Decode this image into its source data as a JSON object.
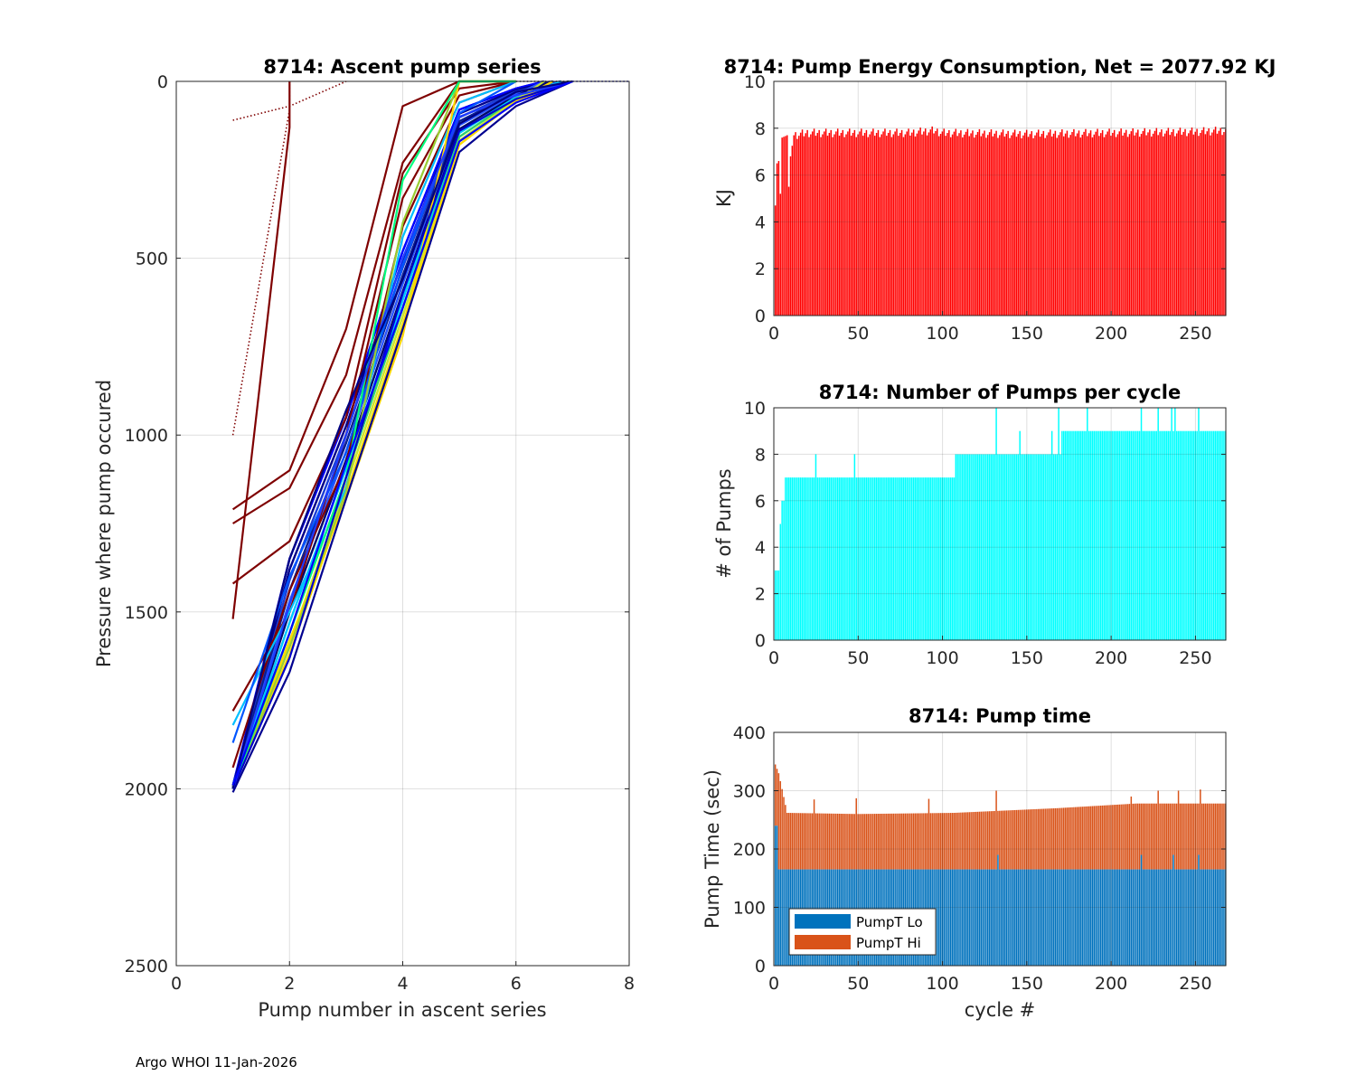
{
  "footer": "Argo WHOI 11-Jan-2026",
  "chart_data": [
    {
      "id": "ascent",
      "type": "line",
      "title": "8714: Ascent pump series",
      "xlabel": "Pump number in ascent series",
      "ylabel": "Pressure where pump occured",
      "xlim": [
        0,
        8
      ],
      "ylim": [
        2500,
        0
      ],
      "y_reversed": true,
      "grid": true,
      "xticks": [
        "0",
        "2",
        "4",
        "6",
        "8"
      ],
      "yticks": [
        "0",
        "500",
        "1000",
        "1500",
        "2000",
        "2500"
      ],
      "series": [
        {
          "color": "#7f0000",
          "style": "dotted",
          "x": [
            1,
            2,
            2
          ],
          "y": [
            1000,
            80,
            0
          ]
        },
        {
          "color": "#7f0000",
          "style": "dotted",
          "x": [
            1,
            2,
            3
          ],
          "y": [
            110,
            70,
            0
          ]
        },
        {
          "color": "#7f0000",
          "style": "solid",
          "x": [
            1,
            2,
            2
          ],
          "y": [
            1520,
            130,
            0
          ]
        },
        {
          "color": "#7f0000",
          "style": "solid",
          "x": [
            1,
            2,
            3,
            4,
            5,
            6
          ],
          "y": [
            1210,
            1100,
            700,
            70,
            0,
            0
          ]
        },
        {
          "color": "#7f0000",
          "style": "solid",
          "x": [
            1,
            2,
            3,
            4,
            5,
            6
          ],
          "y": [
            1250,
            1150,
            830,
            230,
            0,
            0
          ]
        },
        {
          "color": "#7f0000",
          "style": "solid",
          "x": [
            1,
            2,
            3,
            4,
            5,
            6
          ],
          "y": [
            1420,
            1300,
            950,
            260,
            20,
            0
          ]
        },
        {
          "color": "#7f0000",
          "style": "solid",
          "x": [
            1,
            2,
            3,
            4,
            5,
            6
          ],
          "y": [
            1780,
            1500,
            1000,
            330,
            40,
            0
          ]
        },
        {
          "color": "#7f0000",
          "style": "solid",
          "x": [
            1,
            2,
            3,
            4,
            5,
            6
          ],
          "y": [
            1940,
            1440,
            1080,
            410,
            60,
            0
          ]
        },
        {
          "color": "#00bfff",
          "style": "solid",
          "x": [
            1,
            2,
            3,
            4,
            5,
            6
          ],
          "y": [
            1820,
            1500,
            1150,
            440,
            60,
            0
          ]
        },
        {
          "color": "#0055ff",
          "style": "solid",
          "x": [
            1,
            2,
            3,
            4,
            5,
            6
          ],
          "y": [
            1870,
            1400,
            1050,
            520,
            90,
            0
          ]
        },
        {
          "color": "#ffd700",
          "style": "solid",
          "x": [
            1,
            2,
            3,
            4,
            5,
            6
          ],
          "y": [
            2000,
            1580,
            1180,
            720,
            0,
            0
          ]
        },
        {
          "color": "#9acd32",
          "style": "solid",
          "x": [
            1,
            2,
            3,
            4,
            5,
            6
          ],
          "y": [
            2000,
            1600,
            1160,
            400,
            0,
            0
          ]
        },
        {
          "color": "#00ff7f",
          "style": "solid",
          "x": [
            1,
            2,
            3,
            4,
            5,
            6
          ],
          "y": [
            2000,
            1560,
            1120,
            280,
            0,
            0
          ]
        },
        {
          "color": "#00008f",
          "style": "solid",
          "x": [
            1,
            2,
            3,
            4,
            5,
            6,
            7
          ],
          "y": [
            2010,
            1670,
            1180,
            700,
            200,
            70,
            0
          ]
        },
        {
          "color": "#0000cd",
          "style": "solid",
          "x": [
            1,
            2,
            3,
            4,
            5,
            6,
            7
          ],
          "y": [
            2000,
            1630,
            1120,
            600,
            140,
            50,
            0
          ]
        },
        {
          "color": "#1e3cff",
          "style": "solid",
          "x": [
            1,
            2,
            3,
            4,
            5,
            6,
            7
          ],
          "y": [
            2000,
            1480,
            1000,
            500,
            100,
            40,
            0
          ]
        },
        {
          "color": "#000080",
          "style": "solid",
          "x": [
            1,
            2,
            3,
            4,
            5,
            6,
            7
          ],
          "y": [
            2000,
            1350,
            930,
            560,
            120,
            30,
            0
          ]
        },
        {
          "color": "#0000ff",
          "style": "solid",
          "x": [
            1,
            2,
            3,
            4,
            5,
            6,
            7
          ],
          "y": [
            1990,
            1560,
            1080,
            640,
            170,
            60,
            0
          ]
        },
        {
          "color": "#00003f",
          "style": "dotted",
          "x": [
            6,
            7
          ],
          "y": [
            0,
            0
          ]
        },
        {
          "color": "#0000aa",
          "style": "dotted",
          "x": [
            7,
            8
          ],
          "y": [
            0,
            0
          ]
        }
      ]
    },
    {
      "id": "energy",
      "type": "bar",
      "title": "8714: Pump Energy Consumption,  Net = 2077.92 KJ",
      "xlabel": "",
      "ylabel": "KJ",
      "xlim": [
        0,
        268
      ],
      "ylim": [
        0,
        10
      ],
      "grid": true,
      "xticks": [
        "0",
        "50",
        "100",
        "150",
        "200",
        "250"
      ],
      "yticks": [
        "0",
        "2",
        "4",
        "6",
        "8",
        "10"
      ],
      "color": "#ff0000",
      "n_cycles": 268,
      "anchors": [
        [
          1,
          4.7
        ],
        [
          2,
          6.5
        ],
        [
          3,
          6.6
        ],
        [
          4,
          5.2
        ],
        [
          5,
          7.6
        ],
        [
          8,
          7.7
        ],
        [
          9,
          5.5
        ],
        [
          10,
          6.8
        ],
        [
          12,
          7.7
        ],
        [
          20,
          7.8
        ],
        [
          50,
          7.8
        ],
        [
          80,
          7.8
        ],
        [
          95,
          7.9
        ],
        [
          100,
          7.8
        ],
        [
          150,
          7.75
        ],
        [
          200,
          7.8
        ],
        [
          250,
          7.85
        ],
        [
          268,
          7.9
        ]
      ]
    },
    {
      "id": "pumps",
      "type": "bar",
      "title": "8714: Number of Pumps per cycle",
      "xlabel": "",
      "ylabel": "# of Pumps",
      "xlim": [
        0,
        268
      ],
      "ylim": [
        0,
        10
      ],
      "grid": true,
      "xticks": [
        "0",
        "50",
        "100",
        "150",
        "200",
        "250"
      ],
      "yticks": [
        "0",
        "2",
        "4",
        "6",
        "8",
        "10"
      ],
      "color": "#00ffff",
      "n_cycles": 268,
      "segments": [
        [
          1,
          3,
          3
        ],
        [
          4,
          4,
          5
        ],
        [
          5,
          6,
          6
        ],
        [
          7,
          107,
          7
        ],
        [
          108,
          135,
          8
        ],
        [
          136,
          168,
          8
        ],
        [
          169,
          214,
          9
        ],
        [
          215,
          268,
          9
        ]
      ],
      "spikes": [
        [
          25,
          8
        ],
        [
          48,
          8
        ],
        [
          111,
          8
        ],
        [
          132,
          10
        ],
        [
          146,
          9
        ],
        [
          165,
          9
        ],
        [
          169,
          10
        ],
        [
          170,
          8
        ],
        [
          186,
          10
        ],
        [
          218,
          10
        ],
        [
          228,
          10
        ],
        [
          236,
          10
        ],
        [
          238,
          10
        ],
        [
          252,
          10
        ]
      ]
    },
    {
      "id": "pumptime",
      "type": "bar",
      "stacked": true,
      "title": "8714: Pump time",
      "xlabel": "cycle #",
      "ylabel": "Pump Time (sec)",
      "xlim": [
        0,
        268
      ],
      "ylim": [
        0,
        400
      ],
      "grid": true,
      "xticks": [
        "0",
        "50",
        "100",
        "150",
        "200",
        "250"
      ],
      "yticks": [
        "0",
        "100",
        "200",
        "300",
        "400"
      ],
      "n_cycles": 268,
      "legend": {
        "position": "bottom-left",
        "entries": [
          "PumpT Lo",
          "PumpT Hi"
        ]
      },
      "series": [
        {
          "name": "PumpT Lo",
          "color": "#0072bd",
          "base": 165,
          "overrides": [
            [
              1,
              240
            ],
            [
              2,
              240
            ],
            [
              133,
              190
            ],
            [
              218,
              190
            ],
            [
              237,
              190
            ],
            [
              252,
              190
            ]
          ]
        },
        {
          "name": "PumpT Hi",
          "color": "#d95319",
          "totals": [
            [
              1,
              345
            ],
            [
              3,
              330
            ],
            [
              8,
              262
            ],
            [
              50,
              260
            ],
            [
              107,
              262
            ],
            [
              168,
              270
            ],
            [
              215,
              278
            ],
            [
              268,
              278
            ]
          ],
          "spikes": [
            [
              24,
              285
            ],
            [
              49,
              287
            ],
            [
              92,
              286
            ],
            [
              132,
              300
            ],
            [
              212,
              290
            ],
            [
              228,
              300
            ],
            [
              240,
              300
            ],
            [
              253,
              302
            ]
          ]
        }
      ]
    }
  ]
}
